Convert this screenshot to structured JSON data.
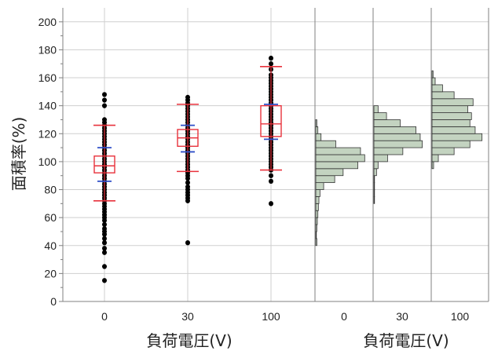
{
  "chart_data": {
    "type": "scatter",
    "ylabel": "面積率(%)",
    "xlabel_left": "負荷電圧(V)",
    "xlabel_right": "負荷電圧(V)",
    "categories": [
      "0",
      "30",
      "100"
    ],
    "hist_categories": [
      "0",
      "30",
      "100"
    ],
    "y_ticks": [
      "0",
      "20",
      "40",
      "60",
      "80",
      "100",
      "120",
      "140",
      "160",
      "180",
      "200"
    ],
    "ylim": [
      0,
      210
    ],
    "grid": true,
    "colors": {
      "points": "#000000",
      "box": "#e8323c",
      "whisker": "#e8323c",
      "mean_marks": "#2f4fc8",
      "hist_fill": "#c3d3c0",
      "hist_stroke": "#333333",
      "grid": "#cfcfcf",
      "axis": "#808080"
    },
    "box_stats": [
      {
        "group": "0",
        "q1": 92,
        "median": 97,
        "q3": 104,
        "whisker_low": 72,
        "whisker_high": 126,
        "mean_low": 86,
        "mean_high": 110
      },
      {
        "group": "30",
        "q1": 111,
        "median": 117,
        "q3": 123,
        "whisker_low": 93,
        "whisker_high": 141,
        "mean_low": 107,
        "mean_high": 126
      },
      {
        "group": "100",
        "q1": 118,
        "median": 127,
        "q3": 140,
        "whisker_low": 94,
        "whisker_high": 168,
        "mean_low": 116,
        "mean_high": 141
      }
    ],
    "points": [
      {
        "group": "0",
        "values": [
          15,
          25,
          35,
          38,
          42,
          45,
          48,
          50,
          52,
          55,
          58,
          60,
          62,
          64,
          66,
          68,
          70,
          72,
          74,
          76,
          78,
          80,
          82,
          84,
          86,
          88,
          90,
          92,
          94,
          96,
          98,
          100,
          102,
          104,
          106,
          108,
          110,
          112,
          114,
          116,
          118,
          120,
          122,
          124,
          126,
          128,
          130,
          140,
          144,
          148
        ]
      },
      {
        "group": "30",
        "values": [
          42,
          72,
          74,
          76,
          78,
          80,
          82,
          85,
          88,
          90,
          92,
          94,
          96,
          98,
          100,
          102,
          104,
          106,
          108,
          110,
          112,
          114,
          116,
          118,
          120,
          122,
          124,
          126,
          128,
          130,
          132,
          134,
          136,
          138,
          140,
          142,
          144,
          146
        ]
      },
      {
        "group": "100",
        "values": [
          70,
          86,
          90,
          94,
          96,
          98,
          100,
          102,
          104,
          106,
          108,
          110,
          112,
          114,
          116,
          118,
          120,
          122,
          124,
          126,
          128,
          130,
          132,
          134,
          136,
          138,
          140,
          142,
          144,
          146,
          148,
          150,
          152,
          154,
          156,
          158,
          160,
          162,
          166,
          170,
          174
        ]
      }
    ],
    "histograms": [
      {
        "group": "0",
        "bins": [
          {
            "y0": 40,
            "y1": 45,
            "freq": 0.02
          },
          {
            "y0": 45,
            "y1": 50,
            "freq": 0.01
          },
          {
            "y0": 50,
            "y1": 55,
            "freq": 0.02
          },
          {
            "y0": 55,
            "y1": 60,
            "freq": 0.03
          },
          {
            "y0": 60,
            "y1": 65,
            "freq": 0.04
          },
          {
            "y0": 65,
            "y1": 70,
            "freq": 0.05
          },
          {
            "y0": 70,
            "y1": 75,
            "freq": 0.06
          },
          {
            "y0": 75,
            "y1": 80,
            "freq": 0.08
          },
          {
            "y0": 80,
            "y1": 85,
            "freq": 0.15
          },
          {
            "y0": 85,
            "y1": 90,
            "freq": 0.36
          },
          {
            "y0": 90,
            "y1": 95,
            "freq": 0.52
          },
          {
            "y0": 95,
            "y1": 100,
            "freq": 0.8
          },
          {
            "y0": 100,
            "y1": 105,
            "freq": 0.93
          },
          {
            "y0": 105,
            "y1": 110,
            "freq": 0.85
          },
          {
            "y0": 110,
            "y1": 115,
            "freq": 0.38
          },
          {
            "y0": 115,
            "y1": 120,
            "freq": 0.1
          },
          {
            "y0": 120,
            "y1": 125,
            "freq": 0.04
          },
          {
            "y0": 125,
            "y1": 130,
            "freq": 0.02
          }
        ]
      },
      {
        "group": "30",
        "bins": [
          {
            "y0": 70,
            "y1": 75,
            "freq": 0.01
          },
          {
            "y0": 75,
            "y1": 80,
            "freq": 0.01
          },
          {
            "y0": 80,
            "y1": 85,
            "freq": 0.01
          },
          {
            "y0": 85,
            "y1": 90,
            "freq": 0.01
          },
          {
            "y0": 90,
            "y1": 95,
            "freq": 0.05
          },
          {
            "y0": 95,
            "y1": 100,
            "freq": 0.08
          },
          {
            "y0": 100,
            "y1": 105,
            "freq": 0.26
          },
          {
            "y0": 105,
            "y1": 110,
            "freq": 0.55
          },
          {
            "y0": 110,
            "y1": 115,
            "freq": 0.92
          },
          {
            "y0": 115,
            "y1": 120,
            "freq": 0.88
          },
          {
            "y0": 120,
            "y1": 125,
            "freq": 0.8
          },
          {
            "y0": 125,
            "y1": 130,
            "freq": 0.5
          },
          {
            "y0": 130,
            "y1": 135,
            "freq": 0.24
          },
          {
            "y0": 135,
            "y1": 140,
            "freq": 0.08
          }
        ]
      },
      {
        "group": "100",
        "bins": [
          {
            "y0": 95,
            "y1": 100,
            "freq": 0.03
          },
          {
            "y0": 100,
            "y1": 105,
            "freq": 0.12
          },
          {
            "y0": 105,
            "y1": 110,
            "freq": 0.42
          },
          {
            "y0": 110,
            "y1": 115,
            "freq": 0.72
          },
          {
            "y0": 115,
            "y1": 120,
            "freq": 0.95
          },
          {
            "y0": 120,
            "y1": 125,
            "freq": 0.82
          },
          {
            "y0": 125,
            "y1": 130,
            "freq": 0.72
          },
          {
            "y0": 130,
            "y1": 135,
            "freq": 0.75
          },
          {
            "y0": 135,
            "y1": 140,
            "freq": 0.68
          },
          {
            "y0": 140,
            "y1": 145,
            "freq": 0.78
          },
          {
            "y0": 145,
            "y1": 150,
            "freq": 0.42
          },
          {
            "y0": 150,
            "y1": 155,
            "freq": 0.2
          },
          {
            "y0": 155,
            "y1": 160,
            "freq": 0.06
          },
          {
            "y0": 160,
            "y1": 165,
            "freq": 0.02
          }
        ]
      }
    ]
  }
}
